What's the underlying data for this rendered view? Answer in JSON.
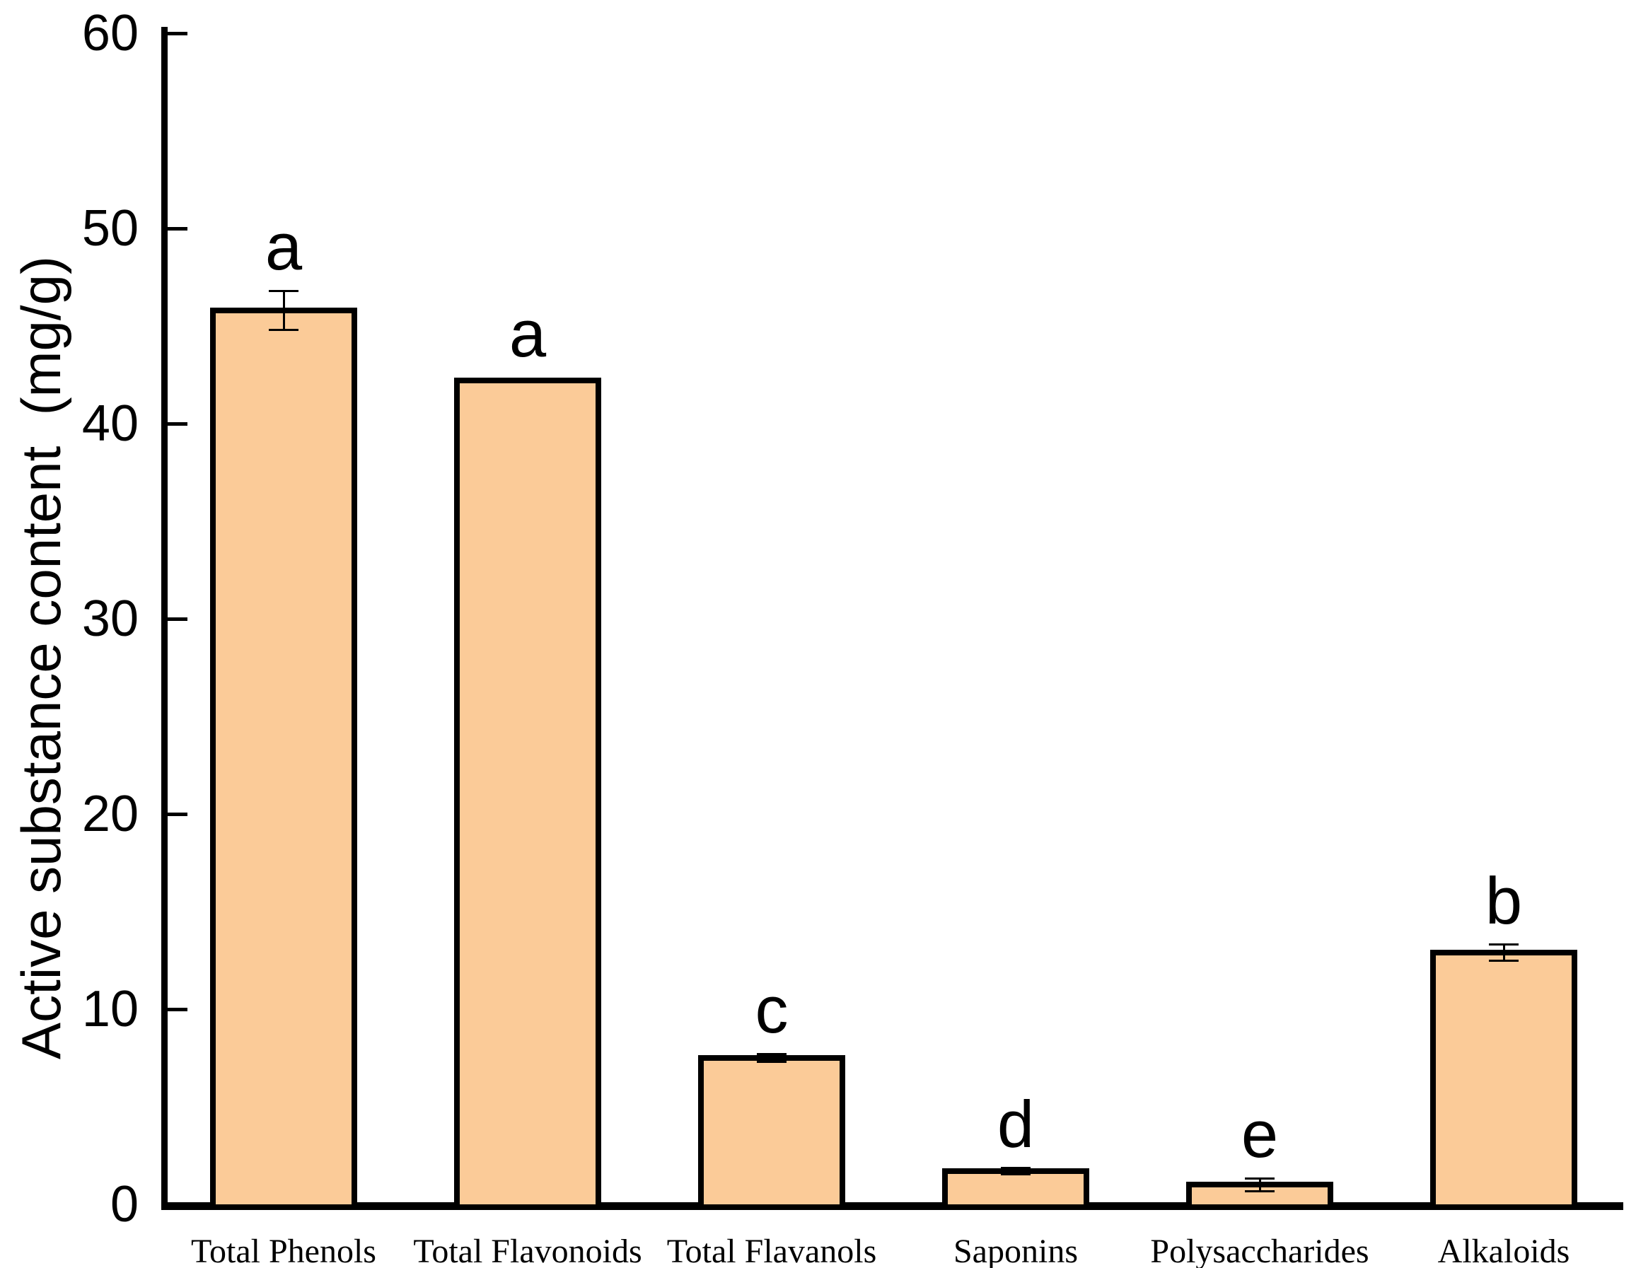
{
  "y_axis": {
    "label": "Active substance content  (mg/g)",
    "min": 0,
    "max": 60,
    "tick_step": 10,
    "tick_labels": [
      "0",
      "10",
      "20",
      "30",
      "40",
      "50",
      "60"
    ]
  },
  "chart_data": {
    "type": "bar",
    "categories": [
      "Total Phenols",
      "Total Flavonoids",
      "Total Flavanols",
      "Saponins",
      "Polysaccharides",
      "Alkaloids"
    ],
    "values": [
      45.8,
      42.2,
      7.5,
      1.7,
      1.0,
      12.9
    ],
    "errors": [
      1.0,
      0,
      0.2,
      0.15,
      0.33,
      0.4
    ],
    "sig_letters": [
      "a",
      "a",
      "c",
      "d",
      "e",
      "b"
    ],
    "title": "",
    "xlabel": "",
    "ylabel": "Active substance content  (mg/g)",
    "ylim": [
      0,
      60
    ],
    "grid": false,
    "legend": false,
    "bar_color": "#FBCB98",
    "bar_border_color": "#000000",
    "axis_color": "#000000"
  }
}
